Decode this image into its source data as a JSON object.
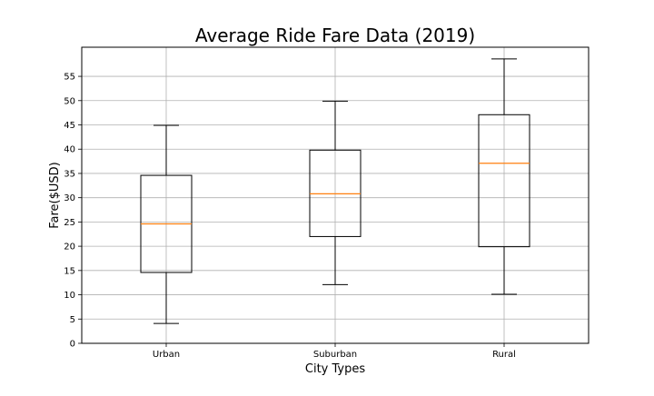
{
  "chart_data": {
    "type": "box",
    "title": "Average Ride Fare Data (2019)",
    "xlabel": "City Types",
    "ylabel": "Fare($USD)",
    "ylim": [
      0,
      61
    ],
    "yticks": [
      0,
      5,
      10,
      15,
      20,
      25,
      30,
      35,
      40,
      45,
      50,
      55
    ],
    "grid": true,
    "categories": [
      "Urban",
      "Suburban",
      "Rural"
    ],
    "boxes": [
      {
        "name": "Urban",
        "whisker_low": 4.1,
        "q1": 14.6,
        "median": 24.6,
        "q3": 34.6,
        "whisker_high": 44.9
      },
      {
        "name": "Suburban",
        "whisker_low": 12.1,
        "q1": 22.0,
        "median": 30.8,
        "q3": 39.8,
        "whisker_high": 49.9
      },
      {
        "name": "Rural",
        "whisker_low": 10.1,
        "q1": 19.9,
        "median": 37.1,
        "q3": 47.1,
        "whisker_high": 58.6
      }
    ],
    "colors": {
      "box": "#000000",
      "median": "#ff7f0e",
      "grid": "#b0b0b0",
      "axes": "#000000"
    }
  }
}
